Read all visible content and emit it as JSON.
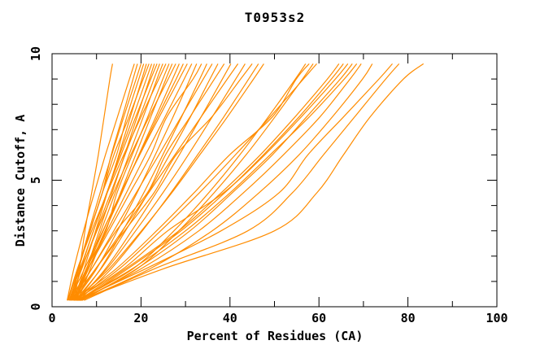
{
  "chart_data": {
    "type": "line",
    "title": "T0953s2",
    "xlabel": "Percent of Residues (CA)",
    "ylabel": "Distance Cutoff, A",
    "xlim": [
      0,
      100
    ],
    "ylim": [
      0,
      10
    ],
    "x_major_ticks": [
      0,
      20,
      40,
      60,
      80,
      100
    ],
    "x_minor_ticks": [
      10,
      30,
      50,
      70,
      90
    ],
    "y_major_ticks": [
      0,
      5,
      10
    ],
    "y_minor_ticks": [
      1,
      2,
      3,
      4,
      6,
      7,
      8,
      9
    ],
    "grid": false,
    "legend": "none",
    "curve_color": "#ff8c00",
    "axis_color": "#000000",
    "background_color": "#ffffff",
    "y_levels": [
      0.25,
      1.5,
      3,
      4.5,
      6,
      7.5,
      9,
      9.6
    ],
    "curves": [
      [
        5.0,
        6.2,
        7.4,
        8.9,
        10.4,
        11.7,
        13.0,
        13.6
      ],
      [
        3.4,
        4.9,
        7.1,
        9.5,
        12.0,
        14.7,
        17.4,
        18.5
      ],
      [
        4.0,
        6.0,
        8.5,
        11.3,
        13.3,
        15.8,
        18.2,
        19.2
      ],
      [
        4.5,
        6.0,
        8.3,
        10.8,
        13.4,
        16.1,
        18.9,
        20.0
      ],
      [
        3.6,
        5.9,
        8.6,
        11.3,
        14.5,
        16.8,
        19.5,
        20.6
      ],
      [
        5.0,
        7.2,
        9.8,
        12.4,
        15.0,
        17.6,
        20.2,
        21.2
      ],
      [
        4.2,
        5.9,
        8.5,
        11.3,
        13.9,
        17.3,
        20.5,
        21.8
      ],
      [
        3.8,
        6.3,
        9.3,
        12.3,
        15.2,
        18.2,
        21.2,
        22.4
      ],
      [
        5.5,
        7.8,
        10.6,
        13.5,
        16.3,
        19.1,
        21.9,
        23.0
      ],
      [
        4.6,
        6.5,
        9.3,
        12.3,
        15.5,
        18.8,
        22.2,
        23.6
      ],
      [
        4.0,
        6.7,
        9.9,
        13.2,
        16.4,
        19.7,
        22.9,
        24.2
      ],
      [
        5.2,
        7.8,
        11.0,
        14.2,
        17.3,
        20.5,
        23.6,
        24.9
      ],
      [
        3.5,
        5.7,
        8.9,
        12.4,
        16.1,
        20.0,
        24.0,
        25.6
      ],
      [
        4.8,
        7.7,
        12.1,
        14.6,
        18.0,
        21.5,
        24.9,
        26.3
      ],
      [
        5.8,
        8.6,
        12.0,
        15.4,
        18.8,
        22.2,
        25.6,
        27.0
      ],
      [
        4.3,
        6.6,
        10.1,
        13.8,
        17.7,
        21.8,
        26.1,
        27.8
      ],
      [
        5.0,
        8.2,
        11.9,
        15.7,
        19.5,
        23.3,
        27.1,
        28.6
      ],
      [
        3.9,
        7.3,
        11.4,
        15.5,
        19.6,
        23.7,
        27.9,
        29.5
      ],
      [
        5.4,
        7.9,
        11.5,
        15.5,
        19.7,
        24.1,
        28.6,
        30.4
      ],
      [
        4.5,
        8.1,
        12.4,
        16.7,
        21.0,
        25.4,
        29.7,
        31.4
      ],
      [
        5.0,
        10.0,
        14.7,
        19.1,
        23.2,
        27.2,
        31.0,
        32.5
      ],
      [
        4.1,
        8.1,
        12.8,
        17.5,
        22.2,
        25.8,
        31.7,
        33.6
      ],
      [
        5.6,
        10.9,
        15.9,
        20.6,
        24.9,
        29.1,
        33.2,
        34.8
      ],
      [
        4.7,
        8.9,
        13.9,
        18.9,
        24.0,
        29.0,
        34.0,
        36.0
      ],
      [
        5.2,
        11.0,
        16.5,
        21.6,
        26.4,
        31.1,
        35.5,
        37.3
      ],
      [
        4.3,
        8.9,
        14.4,
        21.4,
        25.5,
        31.0,
        36.5,
        38.7
      ],
      [
        5.8,
        12.0,
        17.9,
        23.4,
        28.6,
        33.5,
        38.3,
        40.2
      ],
      [
        4.9,
        9.8,
        15.8,
        21.7,
        27.6,
        33.5,
        39.4,
        41.8
      ],
      [
        5.4,
        12.3,
        18.8,
        24.9,
        30.6,
        36.0,
        41.3,
        43.4
      ],
      [
        4.4,
        9.8,
        16.3,
        22.9,
        27.9,
        35.9,
        42.4,
        45.0
      ],
      [
        6.0,
        13.3,
        20.3,
        26.7,
        32.7,
        38.6,
        44.2,
        46.4
      ],
      [
        5.1,
        12.8,
        20.1,
        26.9,
        33.2,
        39.4,
        45.3,
        47.6
      ],
      [
        5.6,
        18.2,
        27.4,
        35.2,
        42.2,
        48.6,
        54.7,
        57.0
      ],
      [
        4.8,
        14.4,
        23.5,
        31.9,
        39.9,
        49.5,
        54.9,
        57.8
      ],
      [
        6.2,
        19.1,
        28.5,
        36.4,
        43.6,
        50.1,
        56.3,
        58.7
      ],
      [
        5.3,
        15.1,
        24.4,
        33.1,
        41.2,
        49.0,
        56.5,
        59.5
      ],
      [
        5.9,
        16.5,
        28.5,
        38.0,
        46.8,
        54.6,
        61.9,
        64.5
      ],
      [
        6.4,
        17.0,
        29.0,
        38.8,
        47.5,
        55.5,
        62.8,
        65.5
      ],
      [
        5.0,
        16.0,
        26.0,
        38.5,
        47.8,
        56.0,
        63.7,
        66.5
      ],
      [
        6.8,
        19.0,
        31.0,
        40.5,
        49.5,
        57.2,
        64.8,
        67.5
      ],
      [
        5.5,
        18.0,
        30.0,
        40.0,
        49.0,
        57.8,
        65.7,
        68.5
      ],
      [
        6.1,
        20.0,
        33.0,
        43.0,
        52.0,
        60.2,
        67.0,
        69.5
      ],
      [
        6.6,
        22.0,
        36.0,
        46.5,
        55.5,
        63.0,
        69.8,
        72.0
      ],
      [
        5.7,
        21.0,
        38.0,
        51.0,
        57.5,
        65.5,
        73.5,
        76.5
      ],
      [
        7.2,
        23.0,
        44.0,
        54.0,
        61.0,
        68.0,
        75.0,
        78.0
      ],
      [
        6.3,
        25.0,
        50.0,
        59.5,
        65.5,
        71.5,
        79.0,
        83.5
      ]
    ]
  }
}
